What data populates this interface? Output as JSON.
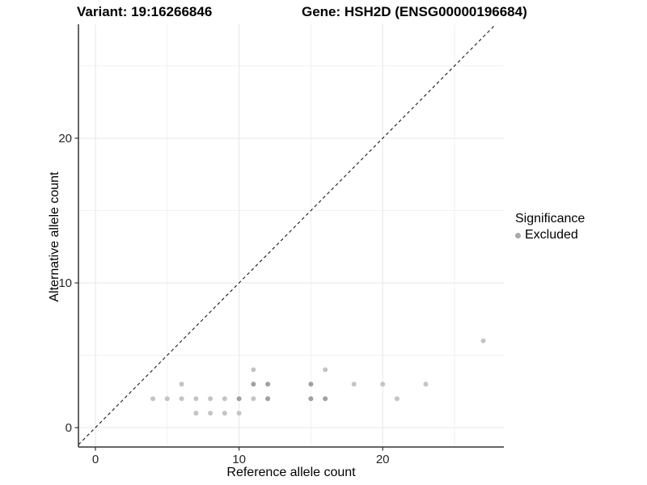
{
  "title": {
    "variant": "Variant: 19:16266846",
    "gene": "Gene: HSH2D (ENSG00000196684)"
  },
  "axes": {
    "x_label": "Reference allele count",
    "y_label": "Alternative allele count",
    "x_ticks": [
      "0",
      "10",
      "20"
    ],
    "y_ticks": [
      "0",
      "10",
      "20"
    ]
  },
  "legend": {
    "title": "Significance",
    "items": [
      {
        "label": "Excluded",
        "color": "#a9a9a9"
      }
    ]
  },
  "chart_data": {
    "type": "scatter",
    "title": "Variant: 19:16266846   Gene: HSH2D (ENSG00000196684)",
    "xlabel": "Reference allele count",
    "ylabel": "Alternative allele count",
    "xlim": [
      -1.2,
      28.4
    ],
    "ylim": [
      -1.4,
      27.9
    ],
    "x_ticks": [
      0,
      10,
      20
    ],
    "y_ticks": [
      0,
      10,
      20
    ],
    "x_minor_gridlines": [
      5,
      15,
      25
    ],
    "y_minor_gridlines": [
      5,
      15,
      25
    ],
    "grid": true,
    "abline": {
      "slope": 1,
      "intercept": 0,
      "style": "dashed",
      "color": "#1a1a1a"
    },
    "legend_position": "right",
    "series": [
      {
        "name": "Excluded",
        "marker": "circle",
        "color": "#c4c4c4",
        "color_overlapped": "#a0a0a0",
        "points_xy_overlapflag": [
          [
            7,
            1,
            0
          ],
          [
            8,
            1,
            0
          ],
          [
            9,
            1,
            0
          ],
          [
            10,
            1,
            0
          ],
          [
            4,
            2,
            0
          ],
          [
            5,
            2,
            0
          ],
          [
            6,
            2,
            0
          ],
          [
            7,
            2,
            0
          ],
          [
            8,
            2,
            0
          ],
          [
            9,
            2,
            0
          ],
          [
            10,
            2,
            1
          ],
          [
            11,
            2,
            0
          ],
          [
            12,
            2,
            1
          ],
          [
            15,
            2,
            1
          ],
          [
            16,
            2,
            1
          ],
          [
            21,
            2,
            0
          ],
          [
            6,
            3,
            0
          ],
          [
            11,
            3,
            1
          ],
          [
            12,
            3,
            1
          ],
          [
            15,
            3,
            1
          ],
          [
            18,
            3,
            0
          ],
          [
            20,
            3,
            0
          ],
          [
            23,
            3,
            0
          ],
          [
            11,
            4,
            0
          ],
          [
            16,
            4,
            0
          ],
          [
            27,
            6,
            0
          ]
        ]
      }
    ]
  },
  "colors": {
    "gridline_major": "#e7e7e7",
    "gridline_minor": "#f1f1f1",
    "axis_line": "#333333",
    "tick_label": "#262626",
    "point_single": "#c4c4c4",
    "point_overlap": "#a0a0a0"
  }
}
